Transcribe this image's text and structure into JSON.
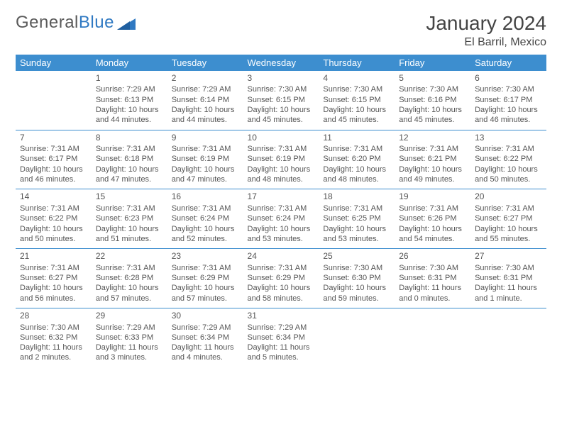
{
  "brand": {
    "part1": "General",
    "part2": "Blue"
  },
  "title": "January 2024",
  "location": "El Barril, Mexico",
  "colors": {
    "header_bg": "#3d8ecf",
    "header_fg": "#ffffff",
    "rule": "#3d8ecf",
    "text": "#555555",
    "brand_gray": "#5a5a5a",
    "brand_blue": "#2f79c2",
    "background": "#ffffff"
  },
  "daysOfWeek": [
    "Sunday",
    "Monday",
    "Tuesday",
    "Wednesday",
    "Thursday",
    "Friday",
    "Saturday"
  ],
  "startWeekday": 1,
  "daysInMonth": 31,
  "cells": {
    "1": {
      "sunrise": "7:29 AM",
      "sunset": "6:13 PM",
      "daylight": "10 hours and 44 minutes."
    },
    "2": {
      "sunrise": "7:29 AM",
      "sunset": "6:14 PM",
      "daylight": "10 hours and 44 minutes."
    },
    "3": {
      "sunrise": "7:30 AM",
      "sunset": "6:15 PM",
      "daylight": "10 hours and 45 minutes."
    },
    "4": {
      "sunrise": "7:30 AM",
      "sunset": "6:15 PM",
      "daylight": "10 hours and 45 minutes."
    },
    "5": {
      "sunrise": "7:30 AM",
      "sunset": "6:16 PM",
      "daylight": "10 hours and 45 minutes."
    },
    "6": {
      "sunrise": "7:30 AM",
      "sunset": "6:17 PM",
      "daylight": "10 hours and 46 minutes."
    },
    "7": {
      "sunrise": "7:31 AM",
      "sunset": "6:17 PM",
      "daylight": "10 hours and 46 minutes."
    },
    "8": {
      "sunrise": "7:31 AM",
      "sunset": "6:18 PM",
      "daylight": "10 hours and 47 minutes."
    },
    "9": {
      "sunrise": "7:31 AM",
      "sunset": "6:19 PM",
      "daylight": "10 hours and 47 minutes."
    },
    "10": {
      "sunrise": "7:31 AM",
      "sunset": "6:19 PM",
      "daylight": "10 hours and 48 minutes."
    },
    "11": {
      "sunrise": "7:31 AM",
      "sunset": "6:20 PM",
      "daylight": "10 hours and 48 minutes."
    },
    "12": {
      "sunrise": "7:31 AM",
      "sunset": "6:21 PM",
      "daylight": "10 hours and 49 minutes."
    },
    "13": {
      "sunrise": "7:31 AM",
      "sunset": "6:22 PM",
      "daylight": "10 hours and 50 minutes."
    },
    "14": {
      "sunrise": "7:31 AM",
      "sunset": "6:22 PM",
      "daylight": "10 hours and 50 minutes."
    },
    "15": {
      "sunrise": "7:31 AM",
      "sunset": "6:23 PM",
      "daylight": "10 hours and 51 minutes."
    },
    "16": {
      "sunrise": "7:31 AM",
      "sunset": "6:24 PM",
      "daylight": "10 hours and 52 minutes."
    },
    "17": {
      "sunrise": "7:31 AM",
      "sunset": "6:24 PM",
      "daylight": "10 hours and 53 minutes."
    },
    "18": {
      "sunrise": "7:31 AM",
      "sunset": "6:25 PM",
      "daylight": "10 hours and 53 minutes."
    },
    "19": {
      "sunrise": "7:31 AM",
      "sunset": "6:26 PM",
      "daylight": "10 hours and 54 minutes."
    },
    "20": {
      "sunrise": "7:31 AM",
      "sunset": "6:27 PM",
      "daylight": "10 hours and 55 minutes."
    },
    "21": {
      "sunrise": "7:31 AM",
      "sunset": "6:27 PM",
      "daylight": "10 hours and 56 minutes."
    },
    "22": {
      "sunrise": "7:31 AM",
      "sunset": "6:28 PM",
      "daylight": "10 hours and 57 minutes."
    },
    "23": {
      "sunrise": "7:31 AM",
      "sunset": "6:29 PM",
      "daylight": "10 hours and 57 minutes."
    },
    "24": {
      "sunrise": "7:31 AM",
      "sunset": "6:29 PM",
      "daylight": "10 hours and 58 minutes."
    },
    "25": {
      "sunrise": "7:30 AM",
      "sunset": "6:30 PM",
      "daylight": "10 hours and 59 minutes."
    },
    "26": {
      "sunrise": "7:30 AM",
      "sunset": "6:31 PM",
      "daylight": "11 hours and 0 minutes."
    },
    "27": {
      "sunrise": "7:30 AM",
      "sunset": "6:31 PM",
      "daylight": "11 hours and 1 minute."
    },
    "28": {
      "sunrise": "7:30 AM",
      "sunset": "6:32 PM",
      "daylight": "11 hours and 2 minutes."
    },
    "29": {
      "sunrise": "7:29 AM",
      "sunset": "6:33 PM",
      "daylight": "11 hours and 3 minutes."
    },
    "30": {
      "sunrise": "7:29 AM",
      "sunset": "6:34 PM",
      "daylight": "11 hours and 4 minutes."
    },
    "31": {
      "sunrise": "7:29 AM",
      "sunset": "6:34 PM",
      "daylight": "11 hours and 5 minutes."
    }
  },
  "labels": {
    "sunrise": "Sunrise:",
    "sunset": "Sunset:",
    "daylight": "Daylight:"
  }
}
